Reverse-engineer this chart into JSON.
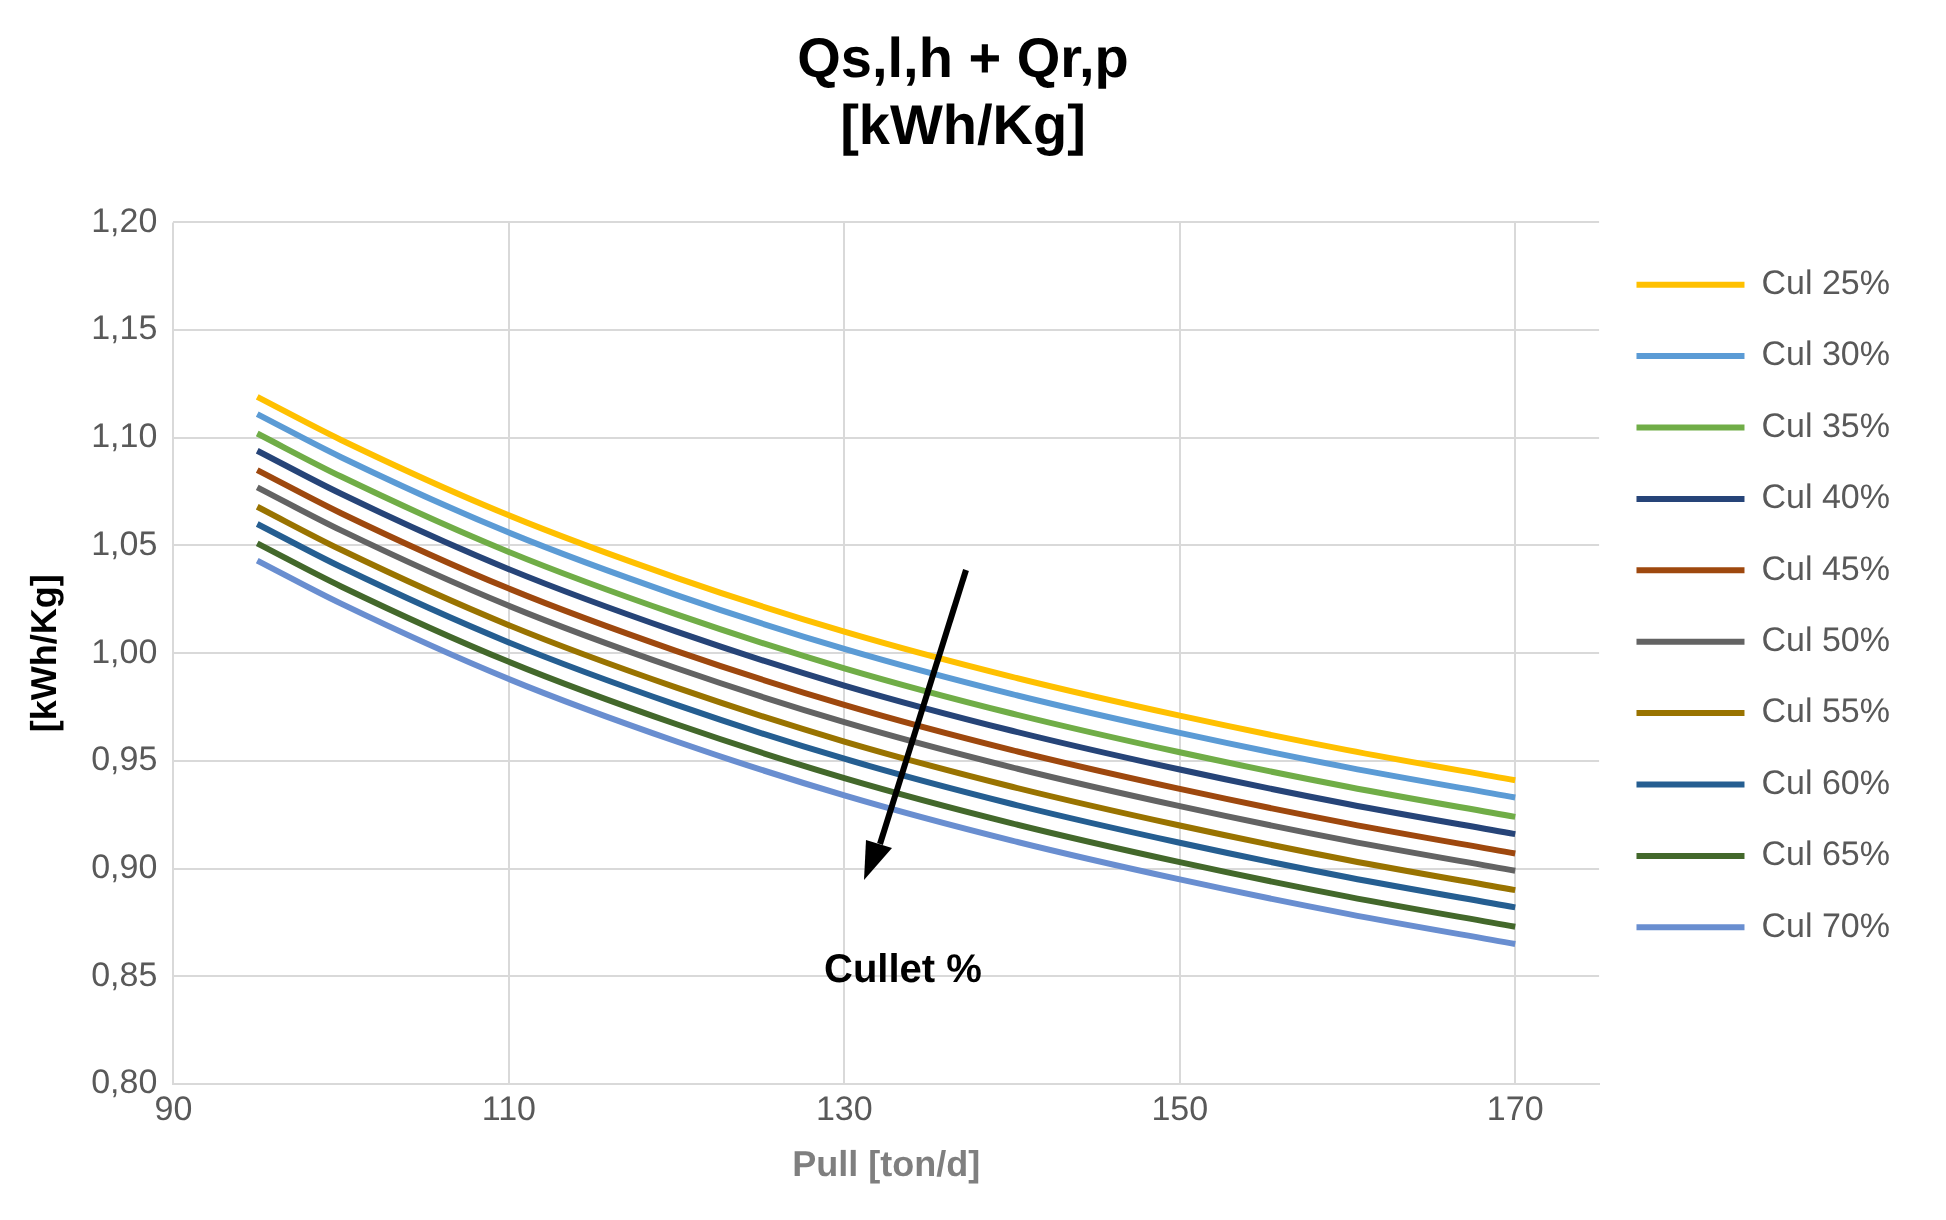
{
  "chart_data": {
    "type": "line",
    "title": "Qs,l,h + Qr,p\n[kWh/Kg]",
    "xlabel": "Pull [ton/d]",
    "ylabel": "[kWh/Kg]",
    "x": [
      95,
      100,
      110,
      120,
      130,
      140,
      150,
      160,
      170
    ],
    "xlim": [
      90,
      175
    ],
    "xticks": [
      90,
      110,
      130,
      150,
      170
    ],
    "ylim": [
      0.8,
      1.2
    ],
    "yticks": [
      {
        "value": 0.8,
        "label": "0,80"
      },
      {
        "value": 0.85,
        "label": "0,85"
      },
      {
        "value": 0.9,
        "label": "0,90"
      },
      {
        "value": 0.95,
        "label": "0,95"
      },
      {
        "value": 1.0,
        "label": "1,00"
      },
      {
        "value": 1.05,
        "label": "1,05"
      },
      {
        "value": 1.1,
        "label": "1,10"
      },
      {
        "value": 1.15,
        "label": "1,15"
      },
      {
        "value": 1.2,
        "label": "1,20"
      }
    ],
    "grid": true,
    "legend": "right",
    "marker": "none",
    "line_style": "solid",
    "annotations": [
      "Cullet %"
    ],
    "series": [
      {
        "name": "Cul 25%",
        "color": "#ffc000",
        "values": [
          1.119,
          1.099,
          1.064,
          1.035,
          1.01,
          0.989,
          0.971,
          0.955,
          0.941
        ]
      },
      {
        "name": "Cul 30%",
        "color": "#5b9bd5",
        "values": [
          1.111,
          1.091,
          1.056,
          1.027,
          1.002,
          0.981,
          0.963,
          0.947,
          0.933
        ]
      },
      {
        "name": "Cul 35%",
        "color": "#70ad47",
        "values": [
          1.102,
          1.082,
          1.047,
          1.018,
          0.993,
          0.972,
          0.954,
          0.938,
          0.924
        ]
      },
      {
        "name": "Cul 40%",
        "color": "#264478",
        "values": [
          1.094,
          1.074,
          1.039,
          1.01,
          0.985,
          0.964,
          0.946,
          0.93,
          0.916
        ]
      },
      {
        "name": "Cul 45%",
        "color": "#9e480e",
        "values": [
          1.085,
          1.065,
          1.03,
          1.001,
          0.976,
          0.955,
          0.937,
          0.921,
          0.907
        ]
      },
      {
        "name": "Cul 50%",
        "color": "#636363",
        "values": [
          1.077,
          1.057,
          1.022,
          0.993,
          0.968,
          0.947,
          0.929,
          0.913,
          0.899
        ]
      },
      {
        "name": "Cul 55%",
        "color": "#997300",
        "values": [
          1.068,
          1.048,
          1.013,
          0.984,
          0.959,
          0.938,
          0.92,
          0.904,
          0.89
        ]
      },
      {
        "name": "Cul 60%",
        "color": "#255e91",
        "values": [
          1.06,
          1.04,
          1.005,
          0.976,
          0.951,
          0.93,
          0.912,
          0.896,
          0.882
        ]
      },
      {
        "name": "Cul 65%",
        "color": "#43682b",
        "values": [
          1.051,
          1.031,
          0.996,
          0.967,
          0.942,
          0.921,
          0.903,
          0.887,
          0.873
        ]
      },
      {
        "name": "Cul 70%",
        "color": "#698ed0",
        "values": [
          1.043,
          1.023,
          0.988,
          0.959,
          0.934,
          0.913,
          0.895,
          0.879,
          0.865
        ]
      }
    ]
  }
}
